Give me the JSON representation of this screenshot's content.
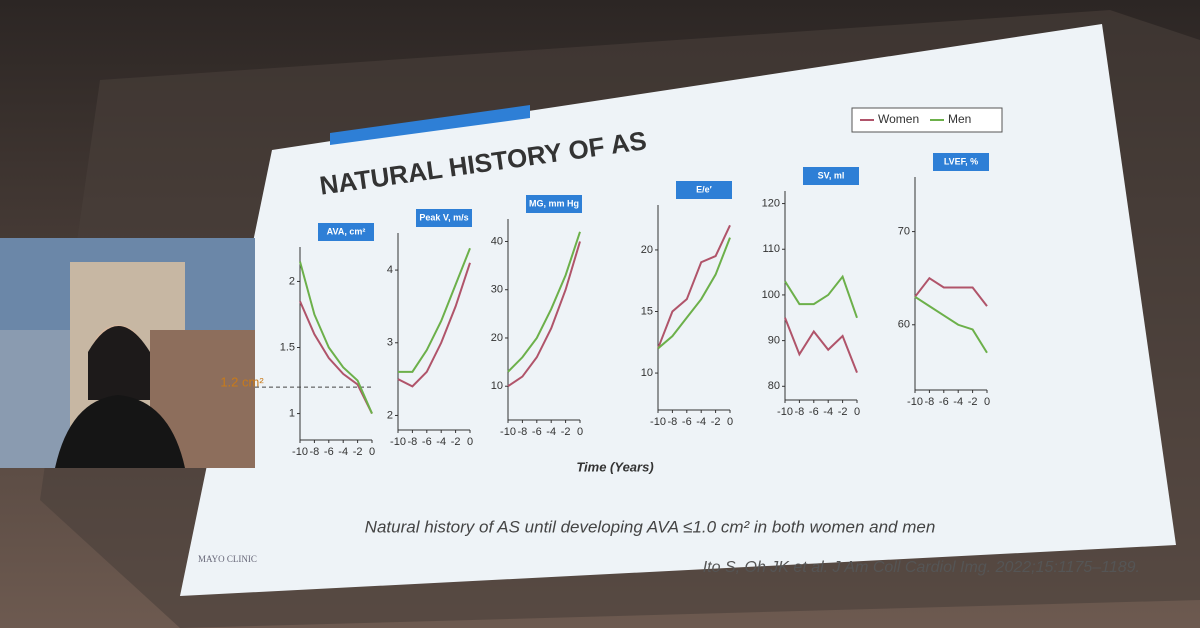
{
  "slide": {
    "title": "NATURAL HISTORY OF AS",
    "x_label": "Time (Years)",
    "caption": "Natural history of AS until developing AVA ≤1.0 cm² in both women and men",
    "citation": "Ito S, Oh JK et al. J Am Coll Cardiol Img. 2022;15:1175–1189.",
    "logo": "MAYO CLINIC"
  },
  "chart_data": [
    {
      "type": "line",
      "title": "AVA, cm²",
      "x": [
        -10,
        -8,
        -6,
        -4,
        -2,
        0
      ],
      "xlim": [
        -10,
        0
      ],
      "xticks": [
        -10,
        -8,
        -6,
        -4,
        -2,
        0
      ],
      "ylim": [
        0.8,
        2.2
      ],
      "yticks": [
        1.0,
        1.5,
        2.0
      ],
      "annotation": {
        "value": 1.2,
        "label": "1.2 cm²"
      },
      "series": [
        {
          "name": "Women",
          "color": "#b0546a",
          "values": [
            1.85,
            1.6,
            1.42,
            1.3,
            1.22,
            1.0
          ]
        },
        {
          "name": "Men",
          "color": "#6cb04a",
          "values": [
            2.15,
            1.75,
            1.5,
            1.35,
            1.25,
            1.0
          ]
        }
      ]
    },
    {
      "type": "line",
      "title": "Peak V, m/s",
      "x": [
        -10,
        -8,
        -6,
        -4,
        -2,
        0
      ],
      "xlim": [
        -10,
        0
      ],
      "xticks": [
        -10,
        -8,
        -6,
        -4,
        -2,
        0
      ],
      "ylim": [
        1.8,
        4.4
      ],
      "yticks": [
        2,
        3,
        4
      ],
      "series": [
        {
          "name": "Women",
          "color": "#b0546a",
          "values": [
            2.5,
            2.4,
            2.6,
            3.0,
            3.5,
            4.1
          ]
        },
        {
          "name": "Men",
          "color": "#6cb04a",
          "values": [
            2.6,
            2.6,
            2.9,
            3.3,
            3.8,
            4.3
          ]
        }
      ]
    },
    {
      "type": "line",
      "title": "MG, mm Hg",
      "x": [
        -10,
        -8,
        -6,
        -4,
        -2,
        0
      ],
      "xlim": [
        -10,
        0
      ],
      "xticks": [
        -10,
        -8,
        -6,
        -4,
        -2,
        0
      ],
      "ylim": [
        3,
        43
      ],
      "yticks": [
        10,
        20,
        30,
        40
      ],
      "series": [
        {
          "name": "Women",
          "color": "#b0546a",
          "values": [
            10,
            12,
            16,
            22,
            30,
            40
          ]
        },
        {
          "name": "Men",
          "color": "#6cb04a",
          "values": [
            13,
            16,
            20,
            26,
            33,
            42
          ]
        }
      ]
    },
    {
      "type": "line",
      "title": "E/e′",
      "x": [
        -10,
        -8,
        -6,
        -4,
        -2,
        0
      ],
      "xlim": [
        -10,
        0
      ],
      "xticks": [
        -10,
        -8,
        -6,
        -4,
        -2,
        0
      ],
      "ylim": [
        7,
        23
      ],
      "yticks": [
        10,
        15,
        20
      ],
      "series": [
        {
          "name": "Women",
          "color": "#b0546a",
          "values": [
            12,
            15,
            16,
            19,
            19.5,
            22
          ]
        },
        {
          "name": "Men",
          "color": "#6cb04a",
          "values": [
            12,
            13,
            14.5,
            16,
            18,
            21
          ]
        }
      ]
    },
    {
      "type": "line",
      "title": "SV, ml",
      "x": [
        -10,
        -8,
        -6,
        -4,
        -2,
        0
      ],
      "xlim": [
        -10,
        0
      ],
      "xticks": [
        -10,
        -8,
        -6,
        -4,
        -2,
        0
      ],
      "ylim": [
        77,
        121
      ],
      "yticks": [
        80,
        90,
        100,
        110,
        120
      ],
      "series": [
        {
          "name": "Women",
          "color": "#b0546a",
          "values": [
            95,
            87,
            92,
            88,
            91,
            83
          ]
        },
        {
          "name": "Men",
          "color": "#6cb04a",
          "values": [
            103,
            98,
            98,
            100,
            104,
            95
          ]
        }
      ]
    },
    {
      "type": "line",
      "title": "LVEF, %",
      "x": [
        -10,
        -8,
        -6,
        -4,
        -2,
        0
      ],
      "xlim": [
        -10,
        0
      ],
      "xticks": [
        -10,
        -8,
        -6,
        -4,
        -2,
        0
      ],
      "ylim": [
        53,
        75
      ],
      "yticks": [
        60,
        70
      ],
      "series": [
        {
          "name": "Women",
          "color": "#b0546a",
          "values": [
            63,
            65,
            64,
            64,
            64,
            62
          ]
        },
        {
          "name": "Men",
          "color": "#6cb04a",
          "values": [
            63,
            62,
            61,
            60,
            59.5,
            57
          ]
        }
      ]
    }
  ]
}
